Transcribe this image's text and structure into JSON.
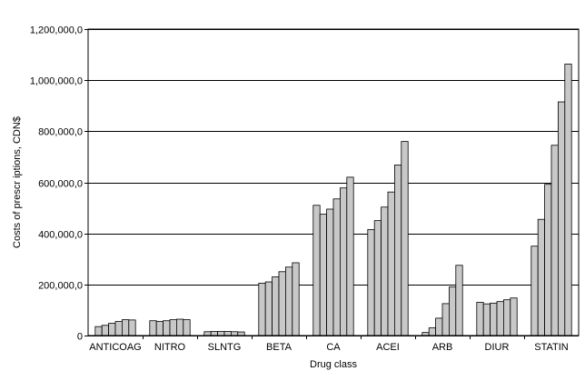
{
  "chart_data": {
    "type": "bar",
    "xlabel": "Drug class",
    "ylabel": "Costs of prescr  iptions, CDN$",
    "ylim": [
      0,
      1200000
    ],
    "yticks": [
      0,
      200000,
      400000,
      600000,
      800000,
      1000000,
      1200000
    ],
    "ytick_labels": [
      "0",
      "200,000,0",
      "400,000,0",
      "600,000,0",
      "800,000,0",
      "1,000,000,0",
      "1,200,000,0"
    ],
    "grid": "horizontal",
    "categories": [
      "ANTICOAG",
      "NITRO",
      "SLNTG",
      "BETA",
      "CA",
      "ACEI",
      "ARB",
      "DIUR",
      "STATIN"
    ],
    "groups": [
      {
        "category": "ANTICOAG",
        "values": [
          35000,
          40000,
          48000,
          55000,
          62000,
          61000
        ]
      },
      {
        "category": "NITRO",
        "values": [
          58000,
          55000,
          58000,
          62000,
          64000,
          62000
        ]
      },
      {
        "category": "SLNTG",
        "values": [
          15000,
          16000,
          16000,
          16000,
          15000,
          14000
        ]
      },
      {
        "category": "BETA",
        "values": [
          205000,
          210000,
          230000,
          250000,
          268000,
          285000
        ]
      },
      {
        "category": "CA",
        "values": [
          510000,
          475000,
          495000,
          535000,
          578000,
          620000
        ]
      },
      {
        "category": "ACEI",
        "values": [
          415000,
          450000,
          503000,
          562000,
          668000,
          760000
        ]
      },
      {
        "category": "ARB",
        "values": [
          12000,
          30000,
          68000,
          125000,
          190000,
          275000
        ]
      },
      {
        "category": "DIUR",
        "values": [
          130000,
          124000,
          127000,
          133000,
          140000,
          147000
        ]
      },
      {
        "category": "STATIN",
        "values": [
          350000,
          455000,
          592000,
          745000,
          915000,
          1063000
        ]
      }
    ],
    "colors": {
      "bar_fill": "#c8c8c8",
      "bar_stroke": "#000000",
      "grid": "#000000",
      "background": "#ffffff"
    }
  }
}
